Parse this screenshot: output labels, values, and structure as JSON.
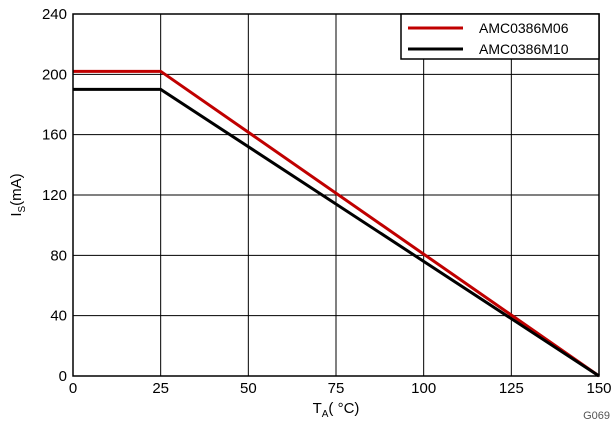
{
  "chart_data": {
    "type": "line",
    "xlabel": {
      "main": "T",
      "sub": "A",
      "unit": "( °C)"
    },
    "ylabel": {
      "main": "I",
      "sub": "S",
      "unit": "(mA)"
    },
    "xlim": [
      0,
      150
    ],
    "ylim": [
      0,
      240
    ],
    "xticks": [
      0,
      25,
      50,
      75,
      100,
      125,
      150
    ],
    "yticks": [
      0,
      40,
      80,
      120,
      160,
      200,
      240
    ],
    "grid": true,
    "legend_position": "top-right",
    "series": [
      {
        "name": "AMC0386M06",
        "color": "#c00000",
        "x": [
          0,
          25,
          150
        ],
        "y": [
          202,
          202,
          0
        ]
      },
      {
        "name": "AMC0386M10",
        "color": "#000000",
        "x": [
          0,
          25,
          150
        ],
        "y": [
          190,
          190,
          0
        ]
      }
    ],
    "figure_id": "G069"
  }
}
